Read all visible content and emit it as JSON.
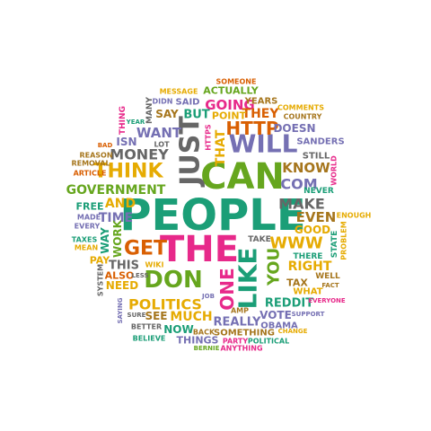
{
  "palette": {
    "green": "#1b9e77",
    "orange": "#d95f02",
    "purple": "#7570b3",
    "magenta": "#e7298a",
    "lime": "#66a61e",
    "gold": "#e6ab02",
    "brown": "#a6761d",
    "gray": "#666666"
  },
  "words": [
    {
      "text": "PEOPLE",
      "color": "green"
    },
    {
      "text": "THE",
      "color": "magenta"
    },
    {
      "text": "CAN",
      "color": "lime"
    },
    {
      "text": "JUST",
      "color": "gray"
    },
    {
      "text": "DON",
      "color": "lime"
    },
    {
      "text": "LIKE",
      "color": "green"
    },
    {
      "text": "WILL",
      "color": "purple"
    },
    {
      "text": "THINK",
      "color": "gold"
    },
    {
      "text": "GET",
      "color": "orange"
    },
    {
      "text": "ONE",
      "color": "magenta"
    },
    {
      "text": "YOU",
      "color": "lime"
    },
    {
      "text": "HTTP",
      "color": "orange"
    },
    {
      "text": "WWW",
      "color": "gold"
    },
    {
      "text": "POLITICS",
      "color": "gold"
    },
    {
      "text": "MONEY",
      "color": "gray"
    },
    {
      "text": "GOVERNMENT",
      "color": "lime"
    },
    {
      "text": "MAKE",
      "color": "gray"
    },
    {
      "text": "EVEN",
      "color": "brown"
    },
    {
      "text": "COM",
      "color": "purple"
    },
    {
      "text": "KNOW",
      "color": "brown"
    },
    {
      "text": "WANT",
      "color": "purple"
    },
    {
      "text": "GOING",
      "color": "magenta"
    },
    {
      "text": "RIGHT",
      "color": "gold"
    },
    {
      "text": "THAT",
      "color": "gold"
    },
    {
      "text": "TIME",
      "color": "purple"
    },
    {
      "text": "AND",
      "color": "gold"
    },
    {
      "text": "MUCH",
      "color": "gold"
    },
    {
      "text": "REALLY",
      "color": "purple"
    },
    {
      "text": "REDDIT",
      "color": "green"
    },
    {
      "text": "DOESN",
      "color": "purple"
    },
    {
      "text": "THEY",
      "color": "orange"
    },
    {
      "text": "THIS",
      "color": "gray"
    },
    {
      "text": "ISN",
      "color": "purple"
    },
    {
      "text": "WORK",
      "color": "lime"
    },
    {
      "text": "WAY",
      "color": "green"
    },
    {
      "text": "BUT",
      "color": "green"
    },
    {
      "text": "SAY",
      "color": "brown"
    },
    {
      "text": "GOOD",
      "color": "gold"
    },
    {
      "text": "VOTE",
      "color": "purple"
    },
    {
      "text": "NEED",
      "color": "gold"
    },
    {
      "text": "SEE",
      "color": "brown"
    },
    {
      "text": "NOW",
      "color": "green"
    },
    {
      "text": "THINGS",
      "color": "purple"
    },
    {
      "text": "TAX",
      "color": "brown"
    },
    {
      "text": "ALSO",
      "color": "orange"
    },
    {
      "text": "PAY",
      "color": "gold"
    },
    {
      "text": "FREE",
      "color": "green"
    },
    {
      "text": "ACTUALLY",
      "color": "lime"
    },
    {
      "text": "POINT",
      "color": "gold"
    },
    {
      "text": "YEARS",
      "color": "brown"
    },
    {
      "text": "STILL",
      "color": "gray"
    },
    {
      "text": "SANDERS",
      "color": "purple"
    },
    {
      "text": "SOMETHING",
      "color": "brown"
    },
    {
      "text": "OBAMA",
      "color": "purple"
    },
    {
      "text": "WHAT",
      "color": "gold"
    },
    {
      "text": "THERE",
      "color": "green"
    },
    {
      "text": "TAKE",
      "color": "gray"
    },
    {
      "text": "WELL",
      "color": "brown"
    },
    {
      "text": "NEVER",
      "color": "green"
    },
    {
      "text": "STATE",
      "color": "green"
    },
    {
      "text": "ENOUGH",
      "color": "gold"
    },
    {
      "text": "PROBLEM",
      "color": "gold"
    },
    {
      "text": "WORLD",
      "color": "magenta"
    },
    {
      "text": "COUNTRY",
      "color": "brown"
    },
    {
      "text": "COMMENTS",
      "color": "gold"
    },
    {
      "text": "SOMEONE",
      "color": "orange"
    },
    {
      "text": "MESSAGE",
      "color": "gold"
    },
    {
      "text": "SAID",
      "color": "purple"
    },
    {
      "text": "DIDN",
      "color": "purple"
    },
    {
      "text": "MANY",
      "color": "gray"
    },
    {
      "text": "THING",
      "color": "magenta"
    },
    {
      "text": "YEAR",
      "color": "green"
    },
    {
      "text": "LOT",
      "color": "gray"
    },
    {
      "text": "BAD",
      "color": "orange"
    },
    {
      "text": "REASON",
      "color": "brown"
    },
    {
      "text": "REMOVAL",
      "color": "brown"
    },
    {
      "text": "ARTICLE",
      "color": "orange"
    },
    {
      "text": "HTTPS",
      "color": "magenta"
    },
    {
      "text": "MADE",
      "color": "purple"
    },
    {
      "text": "EVERY",
      "color": "purple"
    },
    {
      "text": "TAXES",
      "color": "green"
    },
    {
      "text": "MEAN",
      "color": "gold"
    },
    {
      "text": "SYSTEM",
      "color": "gray"
    },
    {
      "text": "LESS",
      "color": "gray"
    },
    {
      "text": "WIKI",
      "color": "gold"
    },
    {
      "text": "JOB",
      "color": "purple"
    },
    {
      "text": "AMP",
      "color": "brown"
    },
    {
      "text": "FACT",
      "color": "brown"
    },
    {
      "text": "EVERYONE",
      "color": "magenta"
    },
    {
      "text": "SUPPORT",
      "color": "purple"
    },
    {
      "text": "CHANGE",
      "color": "gold"
    },
    {
      "text": "POLITICAL",
      "color": "green"
    },
    {
      "text": "PARTY",
      "color": "magenta"
    },
    {
      "text": "ANYTHING",
      "color": "magenta"
    },
    {
      "text": "BERNIE",
      "color": "lime"
    },
    {
      "text": "BACK",
      "color": "brown"
    },
    {
      "text": "BELIEVE",
      "color": "green"
    },
    {
      "text": "BETTER",
      "color": "gray"
    },
    {
      "text": "SURE",
      "color": "gray"
    },
    {
      "text": "SAYING",
      "color": "purple"
    }
  ]
}
